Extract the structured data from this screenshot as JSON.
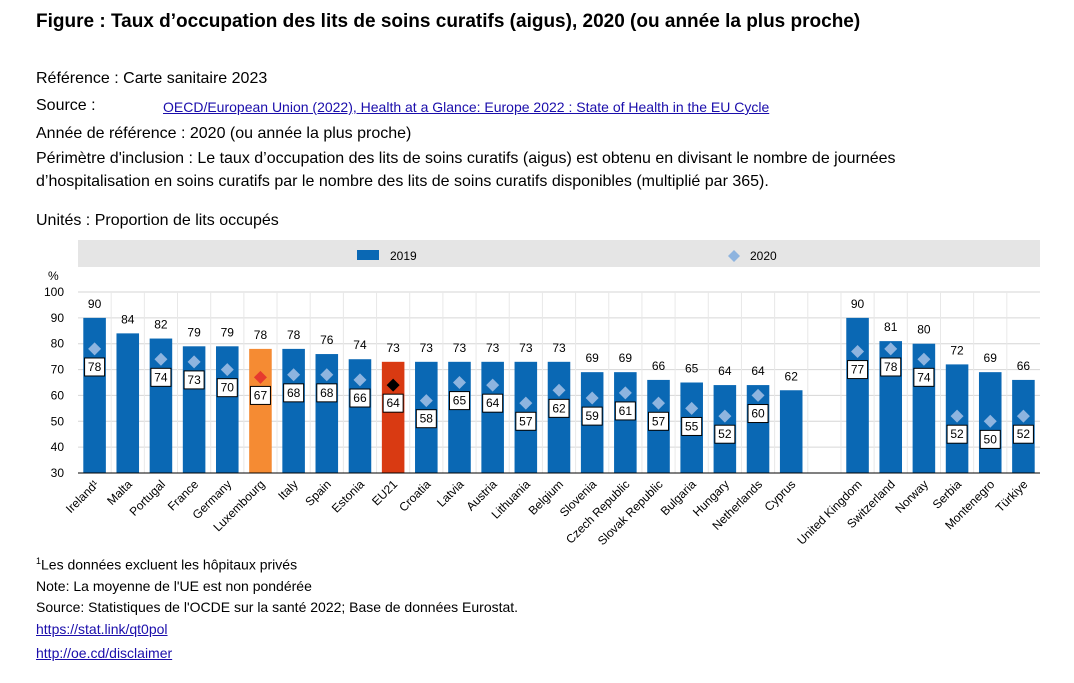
{
  "title": "Figure : Taux d’occupation des lits de soins curatifs (aigus), 2020  (ou année la plus proche)",
  "meta": {
    "reference": "Référence : Carte sanitaire 2023",
    "source_label": "Source :",
    "source_link": "OECD/European Union (2022), Health at a Glance: Europe 2022 : State of Health in the EU Cycle",
    "year": "Année de référence : 2020 (ou année la plus proche)",
    "scope_line1": "Périmètre d'inclusion : Le taux d’occupation des lits de soins curatifs (aigus) est obtenu en divisant le nombre de journées",
    "scope_line2": "d’hospitalisation en soins curatifs par le nombre des lits de soins curatifs disponibles (multiplié par 365).",
    "units": "Unités : Proportion de lits occupés"
  },
  "chart_data": {
    "type": "bar",
    "ylabel": "%",
    "ylim": [
      30,
      100
    ],
    "yticks": [
      30,
      40,
      50,
      60,
      70,
      80,
      90,
      100
    ],
    "grid": true,
    "legend_position": "top",
    "categories": [
      "Ireland¹",
      "Malta",
      "Portugal",
      "France",
      "Germany",
      "Luxembourg",
      "Italy",
      "Spain",
      "Estonia",
      "EU21",
      "Croatia",
      "Latvia",
      "Austria",
      "Lithuania",
      "Belgium",
      "Slovenia",
      "Czech Republic",
      "Slovak Republic",
      "Bulgaria",
      "Hungary",
      "Netherlands",
      "Cyprus",
      "",
      "United Kingdom",
      "Switzerland",
      "Norway",
      "Serbia",
      "Montenegro",
      "Türkiye"
    ],
    "series": [
      {
        "name": "2019",
        "type": "bar",
        "values": [
          90,
          84,
          82,
          79,
          79,
          78,
          78,
          76,
          74,
          73,
          73,
          73,
          73,
          73,
          73,
          69,
          69,
          66,
          65,
          64,
          64,
          62,
          null,
          90,
          81,
          80,
          72,
          69,
          66
        ]
      },
      {
        "name": "2020",
        "type": "marker",
        "values": [
          78,
          null,
          74,
          73,
          70,
          67,
          68,
          68,
          66,
          64,
          58,
          65,
          64,
          57,
          62,
          59,
          61,
          57,
          55,
          52,
          60,
          null,
          null,
          77,
          78,
          74,
          52,
          50,
          52
        ]
      }
    ],
    "colors": {
      "bar": "#0a68b4",
      "marker": "#8eb4df",
      "highlight_lux": "#f58b33",
      "highlight_eu": "#d93a12",
      "lux_marker": "#e63a2e",
      "eu_marker": "#000000",
      "legend_bg": "#e5e5e5"
    }
  },
  "footnotes": {
    "f1_sup": "1",
    "f1": "Les données excluent les hôpitaux privés",
    "f2": "Note: La moyenne de l'UE est non pondérée",
    "f3": "Source: Statistiques de l'OCDE sur la santé 2022; Base de données Eurostat.",
    "link1": "https://stat.link/qt0pol",
    "link2": "http://oe.cd/disclaimer"
  }
}
